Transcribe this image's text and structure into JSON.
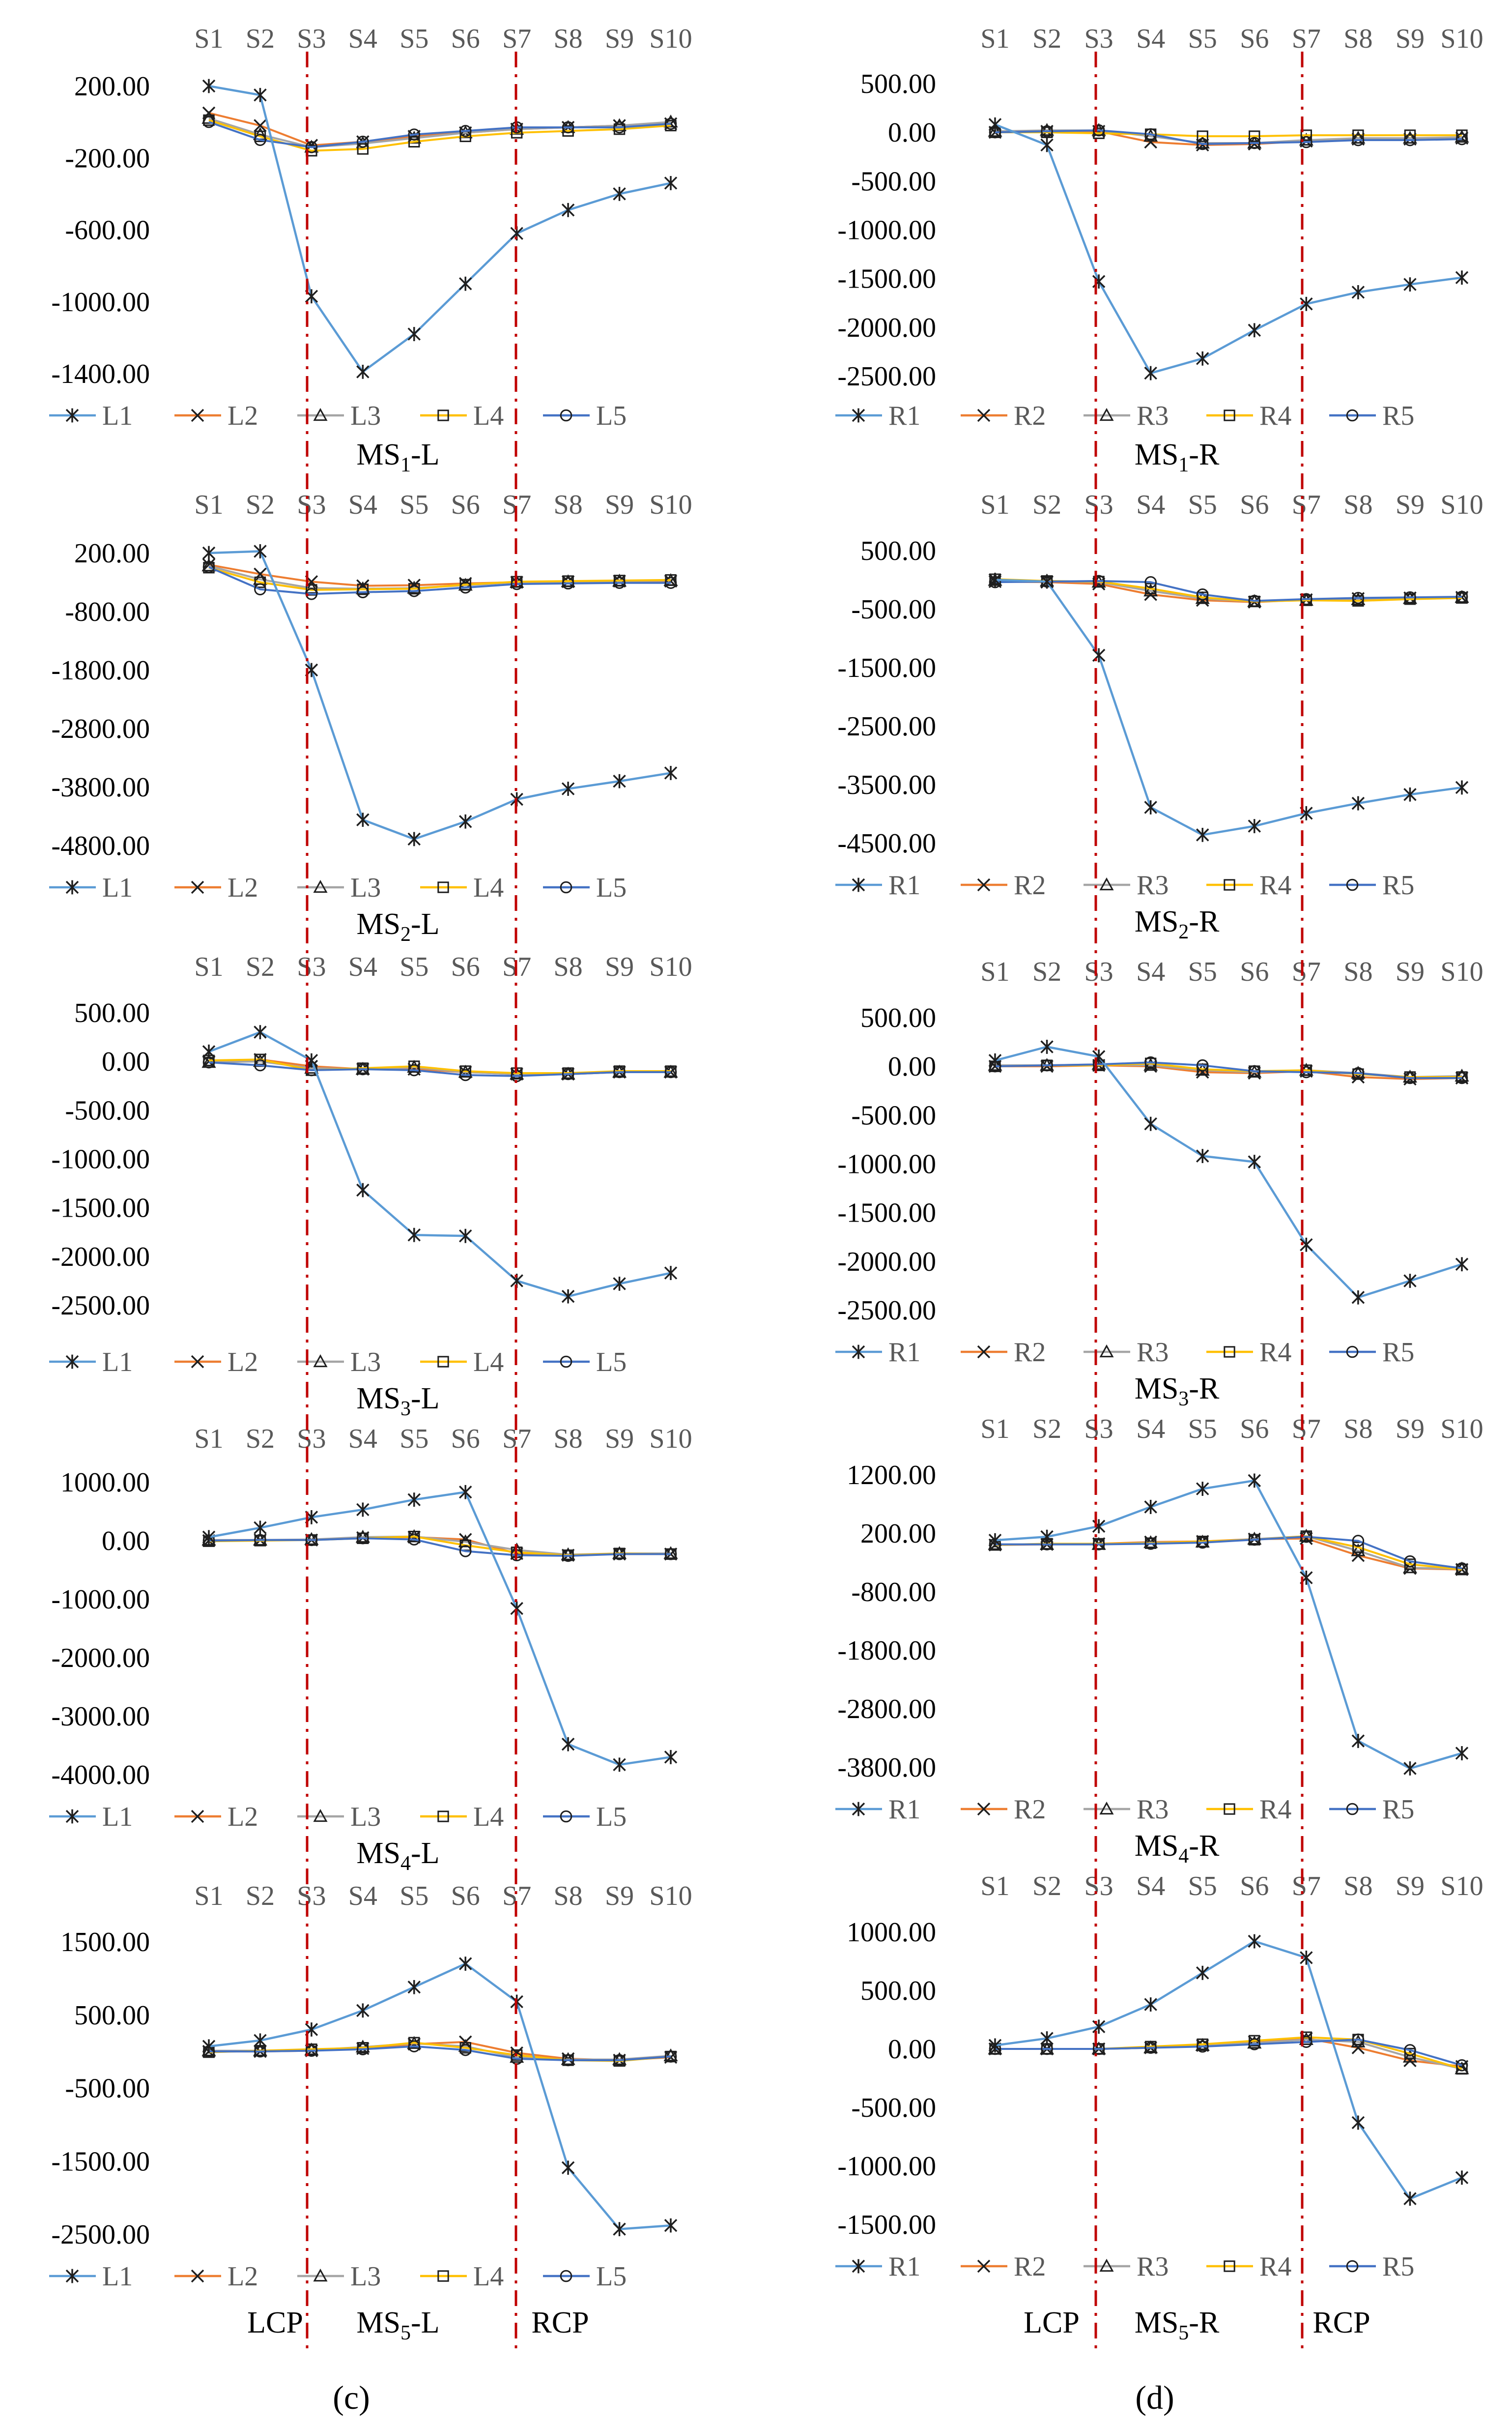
{
  "colors": {
    "series": [
      "#5B9BD5",
      "#ED7D31",
      "#A5A5A5",
      "#FFC000",
      "#4472C4"
    ],
    "divider": "#C00000",
    "text": "#000000",
    "tick": "#595959"
  },
  "markers": [
    "star",
    "x",
    "triangle",
    "square",
    "circle"
  ],
  "labels": {
    "lcp": "LCP",
    "rcp": "RCP",
    "caption_c": "(c)",
    "caption_d": "(d)"
  },
  "chart_data": [
    {
      "id": "ms1l",
      "type": "line",
      "title": "MS1-L",
      "title_base": "MS",
      "title_sub": "1",
      "title_suffix": "-L",
      "categories": [
        "S1",
        "S2",
        "S3",
        "S4",
        "S5",
        "S6",
        "S7",
        "S8",
        "S9",
        "S10"
      ],
      "ylim": [
        -1400,
        200
      ],
      "yticks": [
        200,
        -200,
        -600,
        -1000,
        -1400
      ],
      "ytick_labels": [
        "200.00",
        "-200.00",
        "-600.00",
        "-1000.00",
        "-1400.00"
      ],
      "series": [
        {
          "name": "L1",
          "values": [
            200,
            150,
            -970,
            -1390,
            -1180,
            -900,
            -620,
            -490,
            -400,
            -340
          ]
        },
        {
          "name": "L2",
          "values": [
            50,
            -20,
            -130,
            -110,
            -80,
            -60,
            -40,
            -30,
            -20,
            -10
          ]
        },
        {
          "name": "L3",
          "values": [
            20,
            -70,
            -140,
            -120,
            -90,
            -60,
            -40,
            -30,
            -20,
            0
          ]
        },
        {
          "name": "L4",
          "values": [
            10,
            -80,
            -160,
            -150,
            -110,
            -80,
            -60,
            -50,
            -40,
            -20
          ]
        },
        {
          "name": "L5",
          "values": [
            0,
            -100,
            -140,
            -110,
            -70,
            -50,
            -30,
            -30,
            -30,
            -10
          ]
        }
      ]
    },
    {
      "id": "ms1r",
      "type": "line",
      "title": "MS1-R",
      "title_base": "MS",
      "title_sub": "1",
      "title_suffix": "-R",
      "categories": [
        "S1",
        "S2",
        "S3",
        "S4",
        "S5",
        "S6",
        "S7",
        "S8",
        "S9",
        "S10"
      ],
      "ylim": [
        -2500,
        500
      ],
      "yticks": [
        500,
        0,
        -500,
        -1000,
        -1500,
        -2000,
        -2500
      ],
      "ytick_labels": [
        "500.00",
        "0.00",
        "-500.00",
        "-1000.00",
        "-1500.00",
        "-2000.00",
        "-2500.00"
      ],
      "series": [
        {
          "name": "R1",
          "values": [
            80,
            -130,
            -1530,
            -2470,
            -2320,
            -2030,
            -1760,
            -1640,
            -1560,
            -1490
          ]
        },
        {
          "name": "R2",
          "values": [
            0,
            10,
            10,
            -100,
            -130,
            -120,
            -90,
            -70,
            -70,
            -60
          ]
        },
        {
          "name": "R3",
          "values": [
            10,
            20,
            20,
            -40,
            -110,
            -110,
            -80,
            -60,
            -60,
            -50
          ]
        },
        {
          "name": "R4",
          "values": [
            0,
            0,
            -10,
            -20,
            -40,
            -40,
            -30,
            -30,
            -30,
            -30
          ]
        },
        {
          "name": "R5",
          "values": [
            0,
            10,
            20,
            -20,
            -120,
            -110,
            -100,
            -80,
            -80,
            -70
          ]
        }
      ]
    },
    {
      "id": "ms2l",
      "type": "line",
      "title": "MS2-L",
      "title_base": "MS",
      "title_sub": "2",
      "title_suffix": "-L",
      "categories": [
        "S1",
        "S2",
        "S3",
        "S4",
        "S5",
        "S6",
        "S7",
        "S8",
        "S9",
        "S10"
      ],
      "ylim": [
        -4800,
        200
      ],
      "yticks": [
        200,
        -800,
        -1800,
        -2800,
        -3800,
        -4800
      ],
      "ytick_labels": [
        "200.00",
        "-800.00",
        "-1800.00",
        "-2800.00",
        "-3800.00",
        "-4800.00"
      ],
      "series": [
        {
          "name": "L1",
          "values": [
            200,
            230,
            -1800,
            -4360,
            -4690,
            -4390,
            -4010,
            -3830,
            -3700,
            -3560
          ]
        },
        {
          "name": "L2",
          "values": [
            0,
            -160,
            -290,
            -360,
            -350,
            -320,
            -300,
            -290,
            -280,
            -280
          ]
        },
        {
          "name": "L3",
          "values": [
            -20,
            -250,
            -400,
            -410,
            -400,
            -350,
            -300,
            -290,
            -280,
            -270
          ]
        },
        {
          "name": "L4",
          "values": [
            -50,
            -300,
            -430,
            -420,
            -410,
            -340,
            -290,
            -280,
            -270,
            -260
          ]
        },
        {
          "name": "L5",
          "values": [
            -40,
            -420,
            -500,
            -470,
            -450,
            -390,
            -330,
            -320,
            -310,
            -310
          ]
        }
      ]
    },
    {
      "id": "ms2r",
      "type": "line",
      "title": "MS2-R",
      "title_base": "MS",
      "title_sub": "2",
      "title_suffix": "-R",
      "categories": [
        "S1",
        "S2",
        "S3",
        "S4",
        "S5",
        "S6",
        "S7",
        "S8",
        "S9",
        "S10"
      ],
      "ylim": [
        -4500,
        500
      ],
      "yticks": [
        500,
        -500,
        -1500,
        -2500,
        -3500,
        -4500
      ],
      "ytick_labels": [
        "500.00",
        "-500.00",
        "-1500.00",
        "-2500.00",
        "-3500.00",
        "-4500.00"
      ],
      "series": [
        {
          "name": "R1",
          "values": [
            0,
            -30,
            -1290,
            -3890,
            -4360,
            -4210,
            -3990,
            -3820,
            -3670,
            -3550
          ]
        },
        {
          "name": "R2",
          "values": [
            -30,
            -40,
            -70,
            -250,
            -350,
            -380,
            -340,
            -320,
            -310,
            -300
          ]
        },
        {
          "name": "R3",
          "values": [
            -10,
            -20,
            -40,
            -190,
            -320,
            -370,
            -350,
            -340,
            -320,
            -300
          ]
        },
        {
          "name": "R4",
          "values": [
            10,
            -20,
            -30,
            -150,
            -300,
            -370,
            -350,
            -360,
            -330,
            -310
          ]
        },
        {
          "name": "R5",
          "values": [
            -40,
            -30,
            -20,
            -40,
            -250,
            -360,
            -330,
            -310,
            -300,
            -290
          ]
        }
      ]
    },
    {
      "id": "ms3l",
      "type": "line",
      "title": "MS3-L",
      "title_base": "MS",
      "title_sub": "3",
      "title_suffix": "-L",
      "categories": [
        "S1",
        "S2",
        "S3",
        "S4",
        "S5",
        "S6",
        "S7",
        "S8",
        "S9",
        "S10"
      ],
      "ylim": [
        -2500,
        500
      ],
      "yticks": [
        500,
        0,
        -500,
        -1000,
        -1500,
        -2000,
        -2500
      ],
      "ytick_labels": [
        "500.00",
        "0.00",
        "-500.00",
        "-1000.00",
        "-1500.00",
        "-2000.00",
        "-2500.00"
      ],
      "series": [
        {
          "name": "L1",
          "values": [
            100,
            300,
            10,
            -1320,
            -1780,
            -1790,
            -2250,
            -2410,
            -2280,
            -2170
          ]
        },
        {
          "name": "L2",
          "values": [
            0,
            20,
            -50,
            -80,
            -80,
            -110,
            -130,
            -130,
            -110,
            -110
          ]
        },
        {
          "name": "L3",
          "values": [
            -10,
            0,
            -70,
            -80,
            -60,
            -110,
            -130,
            -130,
            -110,
            -110
          ]
        },
        {
          "name": "L4",
          "values": [
            10,
            20,
            -90,
            -70,
            -50,
            -100,
            -120,
            -120,
            -100,
            -100
          ]
        },
        {
          "name": "L5",
          "values": [
            -10,
            -40,
            -90,
            -80,
            -90,
            -140,
            -150,
            -130,
            -110,
            -110
          ]
        }
      ]
    },
    {
      "id": "ms3r",
      "type": "line",
      "title": "MS3-R",
      "title_base": "MS",
      "title_sub": "3",
      "title_suffix": "-R",
      "categories": [
        "S1",
        "S2",
        "S3",
        "S4",
        "S5",
        "S6",
        "S7",
        "S8",
        "S9",
        "S10"
      ],
      "ylim": [
        -2500,
        500
      ],
      "yticks": [
        500,
        0,
        -500,
        -1000,
        -1500,
        -2000,
        -2500
      ],
      "ytick_labels": [
        "500.00",
        "0.00",
        "-500.00",
        "-1000.00",
        "-1500.00",
        "-2000.00",
        "-2500.00"
      ],
      "series": [
        {
          "name": "R1",
          "values": [
            60,
            200,
            100,
            -590,
            -920,
            -980,
            -1830,
            -2370,
            -2200,
            -2030
          ]
        },
        {
          "name": "R2",
          "values": [
            0,
            0,
            10,
            0,
            -60,
            -70,
            -50,
            -110,
            -130,
            -120
          ]
        },
        {
          "name": "R3",
          "values": [
            10,
            10,
            20,
            10,
            -40,
            -60,
            -40,
            -70,
            -110,
            -100
          ]
        },
        {
          "name": "R4",
          "values": [
            0,
            10,
            10,
            30,
            -30,
            -50,
            -40,
            -80,
            -110,
            -110
          ]
        },
        {
          "name": "R5",
          "values": [
            0,
            10,
            20,
            40,
            10,
            -50,
            -60,
            -70,
            -120,
            -120
          ]
        }
      ]
    },
    {
      "id": "ms4l",
      "type": "line",
      "title": "MS4-L",
      "title_base": "MS",
      "title_sub": "4",
      "title_suffix": "-L",
      "categories": [
        "S1",
        "S2",
        "S3",
        "S4",
        "S5",
        "S6",
        "S7",
        "S8",
        "S9",
        "S10"
      ],
      "ylim": [
        -4000,
        1000
      ],
      "yticks": [
        1000,
        0,
        -1000,
        -2000,
        -3000,
        -4000
      ],
      "ytick_labels": [
        "1000.00",
        "0.00",
        "-1000.00",
        "-2000.00",
        "-3000.00",
        "-4000.00"
      ],
      "series": [
        {
          "name": "L1",
          "values": [
            60,
            220,
            400,
            530,
            700,
            830,
            -1160,
            -3480,
            -3830,
            -3700
          ]
        },
        {
          "name": "L2",
          "values": [
            0,
            10,
            10,
            50,
            60,
            20,
            -220,
            -250,
            -230,
            -230
          ]
        },
        {
          "name": "L3",
          "values": [
            10,
            10,
            20,
            60,
            70,
            -20,
            -160,
            -240,
            -220,
            -220
          ]
        },
        {
          "name": "L4",
          "values": [
            -10,
            0,
            10,
            40,
            70,
            -80,
            -200,
            -250,
            -220,
            -230
          ]
        },
        {
          "name": "L5",
          "values": [
            0,
            10,
            10,
            40,
            20,
            -180,
            -250,
            -260,
            -230,
            -230
          ]
        }
      ]
    },
    {
      "id": "ms4r",
      "type": "line",
      "title": "MS4-R",
      "title_base": "MS",
      "title_sub": "4",
      "title_suffix": "-R",
      "categories": [
        "S1",
        "S2",
        "S3",
        "S4",
        "S5",
        "S6",
        "S7",
        "S8",
        "S9",
        "S10"
      ],
      "ylim": [
        -3800,
        1200
      ],
      "yticks": [
        1200,
        200,
        -800,
        -1800,
        -2800,
        -3800
      ],
      "ytick_labels": [
        "1200.00",
        "200.00",
        "-800.00",
        "-1800.00",
        "-2800.00",
        "-3800.00"
      ],
      "series": [
        {
          "name": "R1",
          "values": [
            80,
            140,
            320,
            650,
            960,
            1100,
            -560,
            -3350,
            -3820,
            -3560
          ]
        },
        {
          "name": "R2",
          "values": [
            0,
            10,
            20,
            50,
            60,
            100,
            110,
            -180,
            -400,
            -420
          ]
        },
        {
          "name": "R3",
          "values": [
            10,
            10,
            10,
            40,
            50,
            100,
            150,
            -100,
            -390,
            -410
          ]
        },
        {
          "name": "R4",
          "values": [
            0,
            20,
            20,
            30,
            60,
            90,
            150,
            -40,
            -330,
            -420
          ]
        },
        {
          "name": "R5",
          "values": [
            10,
            10,
            10,
            20,
            40,
            90,
            140,
            70,
            -280,
            -400
          ]
        }
      ]
    },
    {
      "id": "ms5l",
      "type": "line",
      "title": "MS5-L",
      "title_base": "MS",
      "title_sub": "5",
      "title_suffix": "-L",
      "categories": [
        "S1",
        "S2",
        "S3",
        "S4",
        "S5",
        "S6",
        "S7",
        "S8",
        "S9",
        "S10"
      ],
      "ylim": [
        -2500,
        1500
      ],
      "yticks": [
        1500,
        500,
        -500,
        -1500,
        -2500
      ],
      "ytick_labels": [
        "1500.00",
        "500.00",
        "-500.00",
        "-1500.00",
        "-2500.00"
      ],
      "series": [
        {
          "name": "L1",
          "values": [
            70,
            150,
            300,
            560,
            880,
            1200,
            680,
            -1590,
            -2430,
            -2380
          ]
        },
        {
          "name": "L2",
          "values": [
            0,
            0,
            10,
            40,
            100,
            130,
            -20,
            -100,
            -120,
            -80
          ]
        },
        {
          "name": "L3",
          "values": [
            10,
            10,
            20,
            60,
            110,
            70,
            -80,
            -110,
            -110,
            -60
          ]
        },
        {
          "name": "L4",
          "values": [
            -10,
            10,
            30,
            50,
            120,
            50,
            -50,
            -120,
            -130,
            -70
          ]
        },
        {
          "name": "L5",
          "values": [
            0,
            0,
            10,
            30,
            70,
            20,
            -100,
            -120,
            -120,
            -70
          ]
        }
      ]
    },
    {
      "id": "ms5r",
      "type": "line",
      "title": "MS5-R",
      "title_base": "MS",
      "title_sub": "5",
      "title_suffix": "-R",
      "categories": [
        "S1",
        "S2",
        "S3",
        "S4",
        "S5",
        "S6",
        "S7",
        "S8",
        "S9",
        "S10"
      ],
      "ylim": [
        -1500,
        1000
      ],
      "yticks": [
        1000,
        500,
        0,
        -500,
        -1000,
        -1500
      ],
      "ytick_labels": [
        "1000.00",
        "500.00",
        "0.00",
        "-500.00",
        "-1000.00",
        "-1500.00"
      ],
      "series": [
        {
          "name": "R1",
          "values": [
            30,
            90,
            190,
            380,
            650,
            920,
            780,
            -630,
            -1280,
            -1100
          ]
        },
        {
          "name": "R2",
          "values": [
            0,
            0,
            0,
            10,
            30,
            60,
            90,
            10,
            -100,
            -150
          ]
        },
        {
          "name": "R3",
          "values": [
            0,
            0,
            0,
            10,
            30,
            50,
            80,
            60,
            -70,
            -170
          ]
        },
        {
          "name": "R4",
          "values": [
            0,
            0,
            0,
            20,
            40,
            70,
            100,
            80,
            -40,
            -170
          ]
        },
        {
          "name": "R5",
          "values": [
            0,
            0,
            0,
            10,
            20,
            40,
            60,
            80,
            -10,
            -140
          ]
        }
      ]
    }
  ]
}
